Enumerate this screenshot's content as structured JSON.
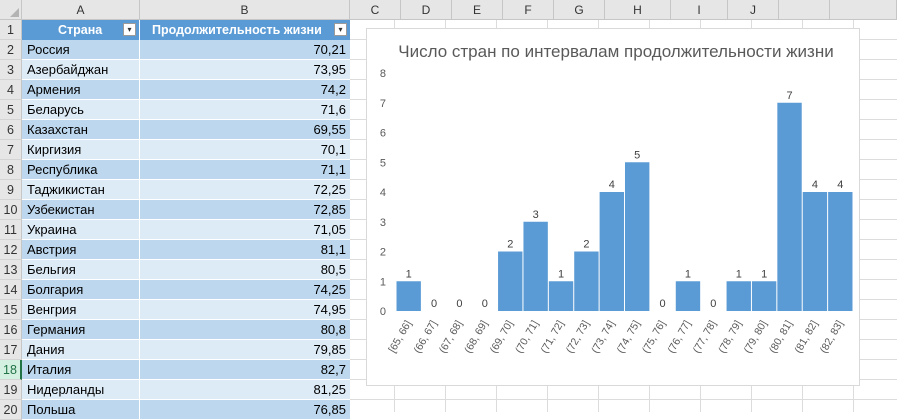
{
  "columns": [
    "A",
    "B",
    "C",
    "D",
    "E",
    "F",
    "G",
    "H",
    "I",
    "J"
  ],
  "rows": [
    "1",
    "2",
    "3",
    "4",
    "5",
    "6",
    "7",
    "8",
    "9",
    "10",
    "11",
    "12",
    "13",
    "14",
    "15",
    "16",
    "17",
    "18",
    "19",
    "20"
  ],
  "selected_row": "18",
  "table": {
    "header_country": "Страна",
    "header_life": "Продолжительность жизни",
    "filter_glyph": "▾",
    "data": [
      {
        "country": "Россия",
        "value": "70,21"
      },
      {
        "country": "Азербайджан",
        "value": "73,95"
      },
      {
        "country": "Армения",
        "value": "74,2"
      },
      {
        "country": "Беларусь",
        "value": "71,6"
      },
      {
        "country": "Казахстан",
        "value": "69,55"
      },
      {
        "country": "Киргизия",
        "value": "70,1"
      },
      {
        "country": "Республика",
        "value": "71,1"
      },
      {
        "country": "Таджикистан",
        "value": "72,25"
      },
      {
        "country": "Узбекистан",
        "value": "72,85"
      },
      {
        "country": "Украина",
        "value": "71,05"
      },
      {
        "country": "Австрия",
        "value": "81,1"
      },
      {
        "country": "Бельгия",
        "value": "80,5"
      },
      {
        "country": "Болгария",
        "value": "74,25"
      },
      {
        "country": "Венгрия",
        "value": "74,95"
      },
      {
        "country": "Германия",
        "value": "80,8"
      },
      {
        "country": "Дания",
        "value": "79,85"
      },
      {
        "country": "Италия",
        "value": "82,7"
      },
      {
        "country": "Нидерланды",
        "value": "81,25"
      },
      {
        "country": "Польша",
        "value": "76,85"
      }
    ]
  },
  "colors": {
    "accent": "#5b9bd5",
    "band1": "#bdd7ee",
    "band2": "#ddebf7",
    "bar": "#5b9bd5",
    "selected_row": "#217346"
  },
  "chart_data": {
    "type": "bar",
    "title": "Число стран по интервалам продолжительности жизни",
    "xlabel": "",
    "ylabel": "",
    "ylim": [
      0,
      8
    ],
    "yticks": [
      "0",
      "1",
      "2",
      "3",
      "4",
      "5",
      "6",
      "7",
      "8"
    ],
    "categories": [
      "[65, 66]",
      "(66, 67]",
      "(67, 68]",
      "(68, 69]",
      "(69, 70]",
      "(70, 71]",
      "(71, 72]",
      "(72, 73]",
      "(73, 74]",
      "(74, 75]",
      "(75, 76]",
      "(76, 77]",
      "(77, 78]",
      "(78, 79]",
      "(79, 80]",
      "(80, 81]",
      "(81, 82]",
      "(82, 83]"
    ],
    "values": [
      1,
      0,
      0,
      0,
      2,
      3,
      1,
      2,
      4,
      5,
      0,
      1,
      0,
      1,
      1,
      7,
      4,
      4
    ],
    "grid": false,
    "legend": "none"
  }
}
